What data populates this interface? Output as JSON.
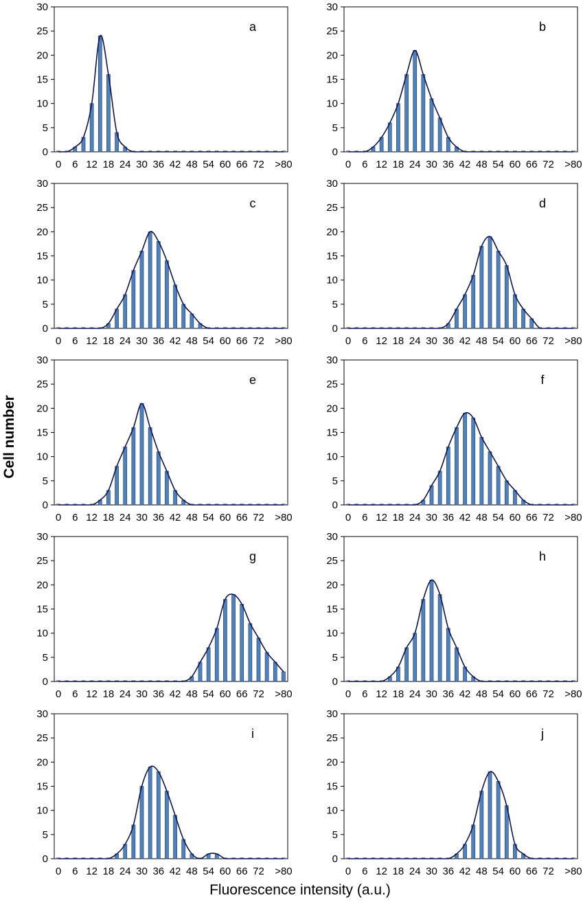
{
  "ylabel": "Cell number",
  "xlabel": "Fluorescence intensity (a.u.)",
  "colors": {
    "bar": "#4f81bd",
    "bar_edge": "#1f3864",
    "curve": "#0d1252",
    "axis": "#000000"
  },
  "chart_data": [
    {
      "type": "bar",
      "panel": "a",
      "categories": [
        "0",
        "3",
        "6",
        "9",
        "12",
        "15",
        "18",
        "21",
        "24",
        "27",
        "30",
        "33",
        "36",
        "39",
        "42",
        "45",
        "48",
        "51",
        "54",
        "57",
        "60",
        "63",
        "66",
        "69",
        "72",
        "75",
        "78",
        ">80"
      ],
      "values": [
        0,
        0,
        1,
        3,
        10,
        24,
        16,
        4,
        1,
        0,
        0,
        0,
        0,
        0,
        0,
        0,
        0,
        0,
        0,
        0,
        0,
        0,
        0,
        0,
        0,
        0,
        0,
        0
      ],
      "ylim": [
        0,
        30
      ],
      "yticks": [
        0,
        5,
        10,
        15,
        20,
        25,
        30
      ]
    },
    {
      "type": "bar",
      "panel": "b",
      "categories": [
        "0",
        "3",
        "6",
        "9",
        "12",
        "15",
        "18",
        "21",
        "24",
        "27",
        "30",
        "33",
        "36",
        "39",
        "42",
        "45",
        "48",
        "51",
        "54",
        "57",
        "60",
        "63",
        "66",
        "69",
        "72",
        "75",
        "78",
        ">80"
      ],
      "values": [
        0,
        0,
        0,
        1,
        3,
        6,
        10,
        16,
        21,
        16,
        11,
        7,
        3,
        1,
        0,
        0,
        0,
        0,
        0,
        0,
        0,
        0,
        0,
        0,
        0,
        0,
        0,
        0
      ],
      "ylim": [
        0,
        30
      ],
      "yticks": [
        0,
        5,
        10,
        15,
        20,
        25,
        30
      ]
    },
    {
      "type": "bar",
      "panel": "c",
      "categories": [
        "0",
        "3",
        "6",
        "9",
        "12",
        "15",
        "18",
        "21",
        "24",
        "27",
        "30",
        "33",
        "36",
        "39",
        "42",
        "45",
        "48",
        "51",
        "54",
        "57",
        "60",
        "63",
        "66",
        "69",
        "72",
        "75",
        "78",
        ">80"
      ],
      "values": [
        0,
        0,
        0,
        0,
        0,
        0,
        1,
        4,
        7,
        12,
        16,
        20,
        18,
        14,
        9,
        5,
        3,
        1,
        0,
        0,
        0,
        0,
        0,
        0,
        0,
        0,
        0,
        0
      ],
      "ylim": [
        0,
        30
      ],
      "yticks": [
        0,
        5,
        10,
        15,
        20,
        25,
        30
      ]
    },
    {
      "type": "bar",
      "panel": "d",
      "categories": [
        "0",
        "3",
        "6",
        "9",
        "12",
        "15",
        "18",
        "21",
        "24",
        "27",
        "30",
        "33",
        "36",
        "39",
        "42",
        "45",
        "48",
        "51",
        "54",
        "57",
        "60",
        "63",
        "66",
        "69",
        "72",
        "75",
        "78",
        ">80"
      ],
      "values": [
        0,
        0,
        0,
        0,
        0,
        0,
        0,
        0,
        0,
        0,
        0,
        0,
        1,
        4,
        7,
        11,
        17,
        19,
        16,
        13,
        7,
        4,
        2,
        0,
        0,
        0,
        0,
        0
      ],
      "ylim": [
        0,
        30
      ],
      "yticks": [
        0,
        5,
        10,
        15,
        20,
        25,
        30
      ]
    },
    {
      "type": "bar",
      "panel": "e",
      "categories": [
        "0",
        "3",
        "6",
        "9",
        "12",
        "15",
        "18",
        "21",
        "24",
        "27",
        "30",
        "33",
        "36",
        "39",
        "42",
        "45",
        "48",
        "51",
        "54",
        "57",
        "60",
        "63",
        "66",
        "69",
        "72",
        "75",
        "78",
        ">80"
      ],
      "values": [
        0,
        0,
        0,
        0,
        0,
        1,
        3,
        8,
        12,
        16,
        21,
        16,
        11,
        7,
        3,
        1,
        0,
        0,
        0,
        0,
        0,
        0,
        0,
        0,
        0,
        0,
        0,
        0
      ],
      "ylim": [
        0,
        30
      ],
      "yticks": [
        0,
        5,
        10,
        15,
        20,
        25,
        30
      ]
    },
    {
      "type": "bar",
      "panel": "f",
      "categories": [
        "0",
        "3",
        "6",
        "9",
        "12",
        "15",
        "18",
        "21",
        "24",
        "27",
        "30",
        "33",
        "36",
        "39",
        "42",
        "45",
        "48",
        "51",
        "54",
        "57",
        "60",
        "63",
        "66",
        "69",
        "72",
        "75",
        "78",
        ">80"
      ],
      "values": [
        0,
        0,
        0,
        0,
        0,
        0,
        0,
        0,
        0,
        1,
        4,
        7,
        12,
        16,
        19,
        18,
        14,
        11,
        8,
        5,
        3,
        1,
        0,
        0,
        0,
        0,
        0,
        0
      ],
      "ylim": [
        0,
        30
      ],
      "yticks": [
        0,
        5,
        10,
        15,
        20,
        25,
        30
      ]
    },
    {
      "type": "bar",
      "panel": "g",
      "categories": [
        "0",
        "3",
        "6",
        "9",
        "12",
        "15",
        "18",
        "21",
        "24",
        "27",
        "30",
        "33",
        "36",
        "39",
        "42",
        "45",
        "48",
        "51",
        "54",
        "57",
        "60",
        "63",
        "66",
        "69",
        "72",
        "75",
        "78",
        ">80"
      ],
      "values": [
        0,
        0,
        0,
        0,
        0,
        0,
        0,
        0,
        0,
        0,
        0,
        0,
        0,
        0,
        0,
        0,
        1,
        4,
        7,
        11,
        17,
        18,
        16,
        12,
        9,
        6,
        4,
        2
      ],
      "ylim": [
        0,
        30
      ],
      "yticks": [
        0,
        5,
        10,
        15,
        20,
        25,
        30
      ]
    },
    {
      "type": "bar",
      "panel": "h",
      "categories": [
        "0",
        "3",
        "6",
        "9",
        "12",
        "15",
        "18",
        "21",
        "24",
        "27",
        "30",
        "33",
        "36",
        "39",
        "42",
        "45",
        "48",
        "51",
        "54",
        "57",
        "60",
        "63",
        "66",
        "69",
        "72",
        "75",
        "78",
        ">80"
      ],
      "values": [
        0,
        0,
        0,
        0,
        0,
        1,
        3,
        7,
        10,
        17,
        21,
        18,
        11,
        7,
        3,
        1,
        0,
        0,
        0,
        0,
        0,
        0,
        0,
        0,
        0,
        0,
        0,
        0
      ],
      "ylim": [
        0,
        30
      ],
      "yticks": [
        0,
        5,
        10,
        15,
        20,
        25,
        30
      ]
    },
    {
      "type": "bar",
      "panel": "i",
      "categories": [
        "0",
        "3",
        "6",
        "9",
        "12",
        "15",
        "18",
        "21",
        "24",
        "27",
        "30",
        "33",
        "36",
        "39",
        "42",
        "45",
        "48",
        "51",
        "54",
        "57",
        "60",
        "63",
        "66",
        "69",
        "72",
        "75",
        "78",
        ">80"
      ],
      "values": [
        0,
        0,
        0,
        0,
        0,
        0,
        0,
        1,
        3,
        7,
        15,
        19,
        18,
        14,
        9,
        4,
        1,
        0,
        1,
        1,
        0,
        0,
        0,
        0,
        0,
        0,
        0,
        0
      ],
      "ylim": [
        0,
        30
      ],
      "yticks": [
        0,
        5,
        10,
        15,
        20,
        25,
        30
      ]
    },
    {
      "type": "bar",
      "panel": "j",
      "categories": [
        "0",
        "3",
        "6",
        "9",
        "12",
        "15",
        "18",
        "21",
        "24",
        "27",
        "30",
        "33",
        "36",
        "39",
        "42",
        "45",
        "48",
        "51",
        "54",
        "57",
        "60",
        "63",
        "66",
        "69",
        "72",
        "75",
        "78",
        ">80"
      ],
      "values": [
        0,
        0,
        0,
        0,
        0,
        0,
        0,
        0,
        0,
        0,
        0,
        0,
        0,
        1,
        3,
        7,
        14,
        18,
        16,
        11,
        3,
        1,
        0,
        0,
        0,
        0,
        0,
        0
      ],
      "ylim": [
        0,
        30
      ],
      "yticks": [
        0,
        5,
        10,
        15,
        20,
        25,
        30
      ]
    }
  ]
}
